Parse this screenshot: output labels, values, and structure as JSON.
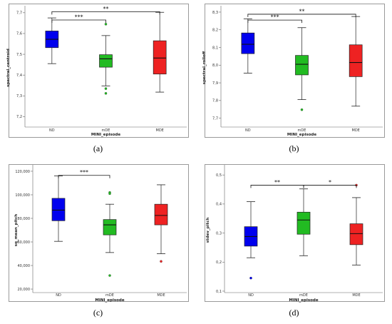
{
  "chart_data": [
    {
      "type": "box",
      "caption": "(a)",
      "ylabel": "spectral_centroid",
      "xlabel": "MINI_episode",
      "ylim": [
        7.15,
        7.72
      ],
      "yticks": [
        7.2,
        7.3,
        7.4,
        7.5,
        7.6,
        7.7
      ],
      "ytick_labels": [
        "7,2",
        "7,3",
        "7,4",
        "7,5",
        "7,6",
        "7,7"
      ],
      "categories": [
        "ND",
        "mDE",
        "MDE"
      ],
      "colors": [
        "#0000ee",
        "#22bb22",
        "#ee2222"
      ],
      "boxes": [
        {
          "min": 7.455,
          "q1": 7.532,
          "median": 7.572,
          "q3": 7.612,
          "max": 7.675,
          "outliers": []
        },
        {
          "min": 7.348,
          "q1": 7.438,
          "median": 7.478,
          "q3": 7.498,
          "max": 7.59,
          "outliers": [
            7.645,
            7.335,
            7.312
          ]
        },
        {
          "min": 7.318,
          "q1": 7.405,
          "median": 7.482,
          "q3": 7.565,
          "max": 7.702,
          "outliers": []
        }
      ],
      "brackets": [
        {
          "from": 0,
          "to": 1,
          "label": "***",
          "y": 7.665
        },
        {
          "from": 0,
          "to": 2,
          "label": "**",
          "y": 7.705
        }
      ]
    },
    {
      "type": "box",
      "caption": "(b)",
      "ylabel": "spectral_rolloff",
      "xlabel": "MINI_episode",
      "ylim": [
        7.65,
        8.32
      ],
      "yticks": [
        7.7,
        7.8,
        7.9,
        8.0,
        8.1,
        8.2,
        8.3
      ],
      "ytick_labels": [
        "7,7",
        "7,8",
        "7,9",
        "8,0",
        "8,1",
        "8,2",
        "8,3"
      ],
      "categories": [
        "ND",
        "mDE",
        "MDE"
      ],
      "colors": [
        "#0000ee",
        "#22bb22",
        "#ee2222"
      ],
      "boxes": [
        {
          "min": 7.955,
          "q1": 8.065,
          "median": 8.118,
          "q3": 8.182,
          "max": 8.262,
          "outliers": []
        },
        {
          "min": 7.805,
          "q1": 7.945,
          "median": 8.005,
          "q3": 8.055,
          "max": 8.212,
          "outliers": [
            7.748
          ]
        },
        {
          "min": 7.768,
          "q1": 7.935,
          "median": 8.015,
          "q3": 8.115,
          "max": 8.275,
          "outliers": []
        }
      ],
      "brackets": [
        {
          "from": 0,
          "to": 1,
          "label": "***",
          "y": 8.255
        },
        {
          "from": 0,
          "to": 2,
          "label": "**",
          "y": 8.288
        }
      ]
    },
    {
      "type": "box",
      "caption": "(c)",
      "ylabel": "sq_mean_pitch",
      "xlabel": "MINI_episode",
      "ylim": [
        17000,
        123000
      ],
      "yticks": [
        20000,
        40000,
        60000,
        80000,
        100000,
        120000
      ],
      "ytick_labels": [
        "20,000",
        "40,000",
        "60,000",
        "80,000",
        "100,000",
        "120,000"
      ],
      "categories": [
        "ND",
        "mDE",
        "MDE"
      ],
      "colors": [
        "#0000ee",
        "#22bb22",
        "#ee2222"
      ],
      "boxes": [
        {
          "min": 60500,
          "q1": 78000,
          "median": 87000,
          "q3": 97000,
          "max": 116000,
          "outliers": []
        },
        {
          "min": 51000,
          "q1": 66000,
          "median": 74500,
          "q3": 79000,
          "max": 92000,
          "outliers": [
            102000,
            101000,
            31500
          ]
        },
        {
          "min": 50000,
          "q1": 74500,
          "median": 82500,
          "q3": 92000,
          "max": 108500,
          "outliers": [
            43500
          ]
        }
      ],
      "brackets": [
        {
          "from": 0,
          "to": 1,
          "label": "***",
          "y": 116500
        }
      ]
    },
    {
      "type": "box",
      "caption": "(d)",
      "ylabel": "stdev_pitch",
      "xlabel": "MINI_episode",
      "ylim": [
        0.095,
        0.525
      ],
      "yticks": [
        0.1,
        0.2,
        0.3,
        0.4,
        0.5
      ],
      "ytick_labels": [
        "0,1",
        "0,2",
        "0,3",
        "0,4",
        "0,5"
      ],
      "categories": [
        "ND",
        "mDE",
        "MDE"
      ],
      "colors": [
        "#0000ee",
        "#22bb22",
        "#ee2222"
      ],
      "boxes": [
        {
          "min": 0.215,
          "q1": 0.255,
          "median": 0.288,
          "q3": 0.322,
          "max": 0.408,
          "outliers": [
            0.145
          ]
        },
        {
          "min": 0.222,
          "q1": 0.296,
          "median": 0.345,
          "q3": 0.372,
          "max": 0.452,
          "outliers": []
        },
        {
          "min": 0.19,
          "q1": 0.26,
          "median": 0.298,
          "q3": 0.332,
          "max": 0.422,
          "outliers": [
            0.465
          ]
        }
      ],
      "brackets": [
        {
          "from": 0,
          "to": 1,
          "label": "**",
          "y": 0.465
        },
        {
          "from": 1,
          "to": 2,
          "label": "*",
          "y": 0.465
        }
      ]
    }
  ]
}
